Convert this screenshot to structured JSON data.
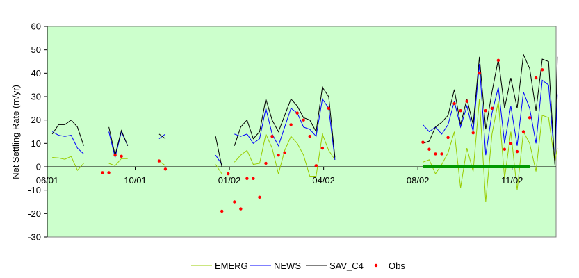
{
  "chart_data": {
    "type": "line",
    "title": "",
    "xlabel": "",
    "ylabel": "Net Settling Rate (m/yr)",
    "ylim": [
      -30,
      60
    ],
    "y_ticks": [
      -30,
      -20,
      -10,
      0,
      10,
      20,
      30,
      40,
      50,
      60
    ],
    "x_range": [
      0,
      81
    ],
    "x_ticks": [
      {
        "x": 0,
        "label": "06/01"
      },
      {
        "x": 14,
        "label": "10/01"
      },
      {
        "x": 29,
        "label": "01/02"
      },
      {
        "x": 44,
        "label": "04/02"
      },
      {
        "x": 59,
        "label": "08/02"
      },
      {
        "x": 74,
        "label": "11/02"
      }
    ],
    "background": "#ccffcc",
    "grid": false,
    "legend": "bottom",
    "series": [
      {
        "name": "EMERG",
        "color": "#99cc00",
        "style": "line",
        "values": [
          [
            0.8,
            4
          ],
          [
            1.8,
            3.8
          ],
          [
            2.8,
            3.2
          ],
          [
            3.8,
            4.5
          ],
          [
            4.8,
            -1.5
          ],
          [
            5.8,
            1.5
          ],
          null,
          [
            9.8,
            1.5
          ],
          [
            10.8,
            0.5
          ],
          [
            11.8,
            3.5
          ],
          [
            12.8,
            3.5
          ],
          null,
          [
            17.8,
            2.5
          ],
          [
            18.8,
            0.5
          ],
          null,
          [
            26.8,
            1
          ],
          [
            27.8,
            -3
          ],
          null,
          [
            29.8,
            2
          ],
          [
            30.8,
            5
          ],
          [
            31.8,
            7
          ],
          [
            32.8,
            1
          ],
          [
            33.8,
            1.5
          ],
          [
            34.8,
            14
          ],
          [
            35.8,
            8
          ],
          [
            36.8,
            -3
          ],
          [
            37.8,
            7
          ],
          [
            38.8,
            13
          ],
          [
            39.8,
            10
          ],
          [
            40.8,
            5
          ],
          [
            41.8,
            -4
          ],
          [
            42.8,
            -4
          ],
          [
            43.8,
            14
          ],
          [
            44.8,
            7
          ],
          [
            45.8,
            3
          ],
          null,
          [
            59.8,
            2
          ],
          [
            60.8,
            3
          ],
          [
            61.8,
            -3
          ],
          [
            62.8,
            1
          ],
          [
            63.8,
            6
          ],
          [
            64.8,
            15
          ],
          [
            65.8,
            -9
          ],
          [
            66.8,
            8
          ],
          [
            67.8,
            -2
          ],
          [
            68.8,
            29
          ],
          [
            69.8,
            -15
          ],
          [
            70.8,
            14
          ],
          [
            71.8,
            28
          ],
          [
            72.8,
            -5
          ],
          [
            73.8,
            15
          ],
          [
            74.8,
            -10
          ],
          [
            75.8,
            15
          ],
          [
            76.8,
            10
          ],
          [
            77.8,
            -2
          ],
          [
            78.8,
            22
          ],
          [
            79.8,
            21
          ],
          [
            80.8,
            2
          ],
          [
            81.2,
            8
          ]
        ]
      },
      {
        "name": "NEWS",
        "color": "#0000ff",
        "style": "line",
        "values": [
          [
            0.8,
            15
          ],
          [
            1.8,
            13.5
          ],
          [
            2.8,
            13
          ],
          [
            3.8,
            13.5
          ],
          [
            4.8,
            8
          ],
          [
            5.8,
            5.5
          ],
          null,
          [
            9.8,
            15
          ],
          [
            10.8,
            4
          ],
          [
            11.8,
            15
          ],
          [
            12.8,
            9
          ],
          null,
          [
            17.8,
            12
          ],
          [
            18.8,
            14
          ],
          null,
          [
            26.8,
            5
          ],
          [
            27.8,
            1
          ],
          null,
          [
            29.8,
            14
          ],
          [
            30.8,
            13
          ],
          [
            31.8,
            14
          ],
          [
            32.8,
            10
          ],
          [
            33.8,
            12
          ],
          [
            34.8,
            25
          ],
          [
            35.8,
            14
          ],
          [
            36.8,
            9
          ],
          [
            37.8,
            17
          ],
          [
            38.8,
            25
          ],
          [
            39.8,
            23
          ],
          [
            40.8,
            17
          ],
          [
            41.8,
            16
          ],
          [
            42.8,
            13
          ],
          [
            43.8,
            29
          ],
          [
            44.8,
            25
          ],
          [
            45.8,
            3
          ],
          null,
          [
            59.8,
            18
          ],
          [
            60.8,
            15
          ],
          [
            61.8,
            17
          ],
          [
            62.8,
            14
          ],
          [
            63.8,
            18
          ],
          [
            64.8,
            28
          ],
          [
            65.8,
            17
          ],
          [
            66.8,
            26
          ],
          [
            67.8,
            15
          ],
          [
            68.8,
            44
          ],
          [
            69.8,
            5
          ],
          [
            70.8,
            23
          ],
          [
            71.8,
            34
          ],
          [
            72.8,
            10
          ],
          [
            73.8,
            26
          ],
          [
            74.8,
            9
          ],
          [
            75.8,
            32
          ],
          [
            76.8,
            25
          ],
          [
            77.8,
            10
          ],
          [
            78.8,
            37
          ],
          [
            79.8,
            35
          ],
          [
            80.8,
            2
          ],
          [
            81.2,
            31
          ]
        ]
      },
      {
        "name": "SAV_C4",
        "color": "#000000",
        "style": "line",
        "values": [
          [
            0.8,
            14
          ],
          [
            1.8,
            18
          ],
          [
            2.8,
            18
          ],
          [
            3.8,
            20
          ],
          [
            4.8,
            17
          ],
          [
            5.8,
            9
          ],
          null,
          [
            9.8,
            17
          ],
          [
            10.8,
            5
          ],
          [
            11.8,
            15.5
          ],
          [
            12.8,
            9
          ],
          null,
          [
            17.8,
            14
          ],
          [
            18.8,
            12
          ],
          null,
          [
            26.8,
            13
          ],
          [
            27.8,
            0
          ],
          null,
          [
            29.8,
            9
          ],
          [
            30.8,
            17
          ],
          [
            31.8,
            20
          ],
          [
            32.8,
            12
          ],
          [
            33.8,
            15
          ],
          [
            34.8,
            29
          ],
          [
            35.8,
            20
          ],
          [
            36.8,
            15
          ],
          [
            37.8,
            22
          ],
          [
            38.8,
            29
          ],
          [
            39.8,
            26
          ],
          [
            40.8,
            21
          ],
          [
            41.8,
            20
          ],
          [
            42.8,
            15
          ],
          [
            43.8,
            34
          ],
          [
            44.8,
            30
          ],
          [
            45.8,
            4
          ],
          null,
          [
            59.8,
            10
          ],
          [
            60.8,
            11
          ],
          [
            61.8,
            17
          ],
          [
            62.8,
            19
          ],
          [
            63.8,
            22
          ],
          [
            64.8,
            33
          ],
          [
            65.8,
            18
          ],
          [
            66.8,
            29
          ],
          [
            67.8,
            18
          ],
          [
            68.8,
            47
          ],
          [
            69.8,
            16
          ],
          [
            70.8,
            32
          ],
          [
            71.8,
            46
          ],
          [
            72.8,
            25
          ],
          [
            73.8,
            38
          ],
          [
            74.8,
            25
          ],
          [
            75.8,
            48
          ],
          [
            76.8,
            42
          ],
          [
            77.8,
            24
          ],
          [
            78.8,
            46
          ],
          [
            79.8,
            45
          ],
          [
            80.8,
            1
          ],
          [
            81.2,
            47
          ]
        ]
      },
      {
        "name": "Obs",
        "color": "#ff0000",
        "style": "points",
        "values": [
          [
            8.8,
            -2.5
          ],
          [
            9.8,
            -2.5
          ],
          [
            10.8,
            5
          ],
          [
            11.8,
            4.5
          ],
          [
            17.8,
            2.5
          ],
          [
            18.8,
            -1
          ],
          [
            27.8,
            -19
          ],
          [
            28.8,
            -3
          ],
          [
            29.8,
            -15
          ],
          [
            30.8,
            -18
          ],
          [
            31.8,
            -5
          ],
          [
            32.8,
            -5
          ],
          [
            33.8,
            -13
          ],
          [
            34.8,
            1.5
          ],
          [
            35.8,
            13
          ],
          [
            36.8,
            5
          ],
          [
            37.8,
            6
          ],
          [
            38.8,
            18
          ],
          [
            39.8,
            23
          ],
          [
            40.8,
            20
          ],
          [
            41.8,
            13
          ],
          [
            42.8,
            0.5
          ],
          [
            43.8,
            8
          ],
          [
            44.8,
            25
          ],
          [
            59.8,
            10.5
          ],
          [
            60.8,
            7.5
          ],
          [
            61.8,
            5.5
          ],
          [
            62.8,
            5.5
          ],
          [
            63.8,
            12.5
          ],
          [
            64.8,
            27
          ],
          [
            65.8,
            24
          ],
          [
            66.8,
            28
          ],
          [
            67.8,
            14.5
          ],
          [
            68.8,
            40
          ],
          [
            69.8,
            24
          ],
          [
            70.8,
            25
          ],
          [
            71.8,
            45.5
          ],
          [
            72.8,
            7.5
          ],
          [
            73.8,
            10
          ],
          [
            74.8,
            6.5
          ],
          [
            75.8,
            15
          ],
          [
            76.8,
            21
          ],
          [
            77.8,
            38
          ],
          [
            78.8,
            41.5
          ]
        ]
      },
      {
        "name": "",
        "color": "#009900",
        "style": "thick",
        "values": [
          [
            59.8,
            0
          ],
          [
            76.8,
            0
          ]
        ]
      }
    ]
  }
}
